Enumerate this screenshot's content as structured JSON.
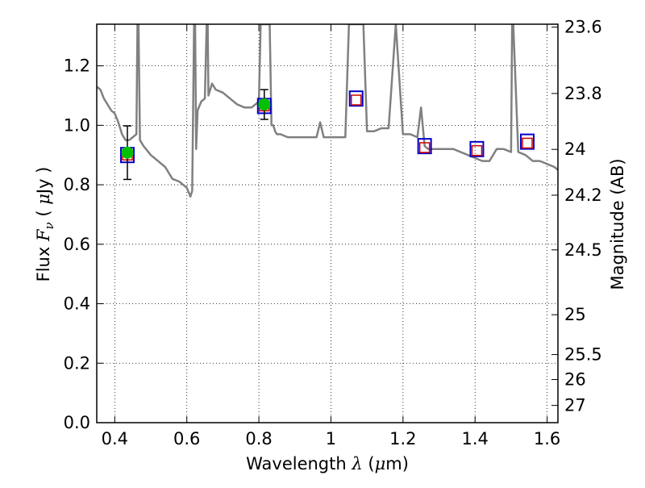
{
  "chart_data": {
    "type": "line",
    "xlabel": {
      "prefix": "Wavelength",
      "symbol": "λ",
      "unit_open": "(",
      "unit_mu": "μ",
      "unit_rest": "m)"
    },
    "ylabel": {
      "prefix": "Flux",
      "symbol": "F",
      "subscript": "ν",
      "unit_open": "(",
      "unit_mu": "μ",
      "unit_rest": "Jy",
      "unit_close": ")"
    },
    "y2label": "Magnitude (AB)",
    "xlim": [
      0.35,
      1.63
    ],
    "ylim": [
      0.0,
      1.34
    ],
    "grid": true,
    "grid_style": "dotted",
    "x_ticks": [
      0.4,
      0.6,
      0.8,
      1.0,
      1.2,
      1.4,
      1.6
    ],
    "x_tick_labels": [
      "0.4",
      "0.6",
      "0.8",
      "1",
      "1.2",
      "1.4",
      "1.6"
    ],
    "y_ticks": [
      0.0,
      0.2,
      0.4,
      0.6,
      0.8,
      1.0,
      1.2
    ],
    "y_tick_labels": [
      "0.0",
      "0.2",
      "0.4",
      "0.6",
      "0.8",
      "1.0",
      "1.2"
    ],
    "y2_ticks": [
      {
        "label": "23.6",
        "flux": 1.33
      },
      {
        "label": "23.8",
        "flux": 1.107
      },
      {
        "label": "24",
        "flux": 0.919
      },
      {
        "label": "24.2",
        "flux": 0.765
      },
      {
        "label": "24.5",
        "flux": 0.581
      },
      {
        "label": "25",
        "flux": 0.363
      },
      {
        "label": "25.5",
        "flux": 0.229
      },
      {
        "label": "26",
        "flux": 0.145
      },
      {
        "label": "27",
        "flux": 0.058
      }
    ],
    "series": [
      {
        "kind": "model_spectrum",
        "color": "#808080",
        "x": [
          0.35,
          0.36,
          0.37,
          0.38,
          0.39,
          0.4,
          0.41,
          0.42,
          0.43,
          0.44,
          0.45,
          0.46,
          0.463,
          0.466,
          0.47,
          0.48,
          0.5,
          0.52,
          0.54,
          0.56,
          0.58,
          0.6,
          0.61,
          0.615,
          0.62,
          0.623,
          0.626,
          0.63,
          0.64,
          0.65,
          0.655,
          0.658,
          0.66,
          0.67,
          0.68,
          0.7,
          0.72,
          0.74,
          0.76,
          0.78,
          0.8,
          0.805,
          0.81,
          0.815,
          0.82,
          0.825,
          0.83,
          0.835,
          0.84,
          0.845,
          0.85,
          0.86,
          0.88,
          0.9,
          0.92,
          0.94,
          0.96,
          0.97,
          0.98,
          1.0,
          1.02,
          1.04,
          1.05,
          1.06,
          1.08,
          1.09,
          1.1,
          1.12,
          1.14,
          1.16,
          1.18,
          1.2,
          1.22,
          1.24,
          1.25,
          1.26,
          1.27,
          1.28,
          1.3,
          1.32,
          1.34,
          1.36,
          1.38,
          1.4,
          1.42,
          1.44,
          1.46,
          1.48,
          1.5,
          1.503,
          1.506,
          1.52,
          1.54,
          1.56,
          1.58,
          1.6,
          1.62,
          1.63
        ],
        "y": [
          1.13,
          1.12,
          1.09,
          1.07,
          1.05,
          1.04,
          1.01,
          0.97,
          0.95,
          0.95,
          0.96,
          0.97,
          1.34,
          1.34,
          0.95,
          0.93,
          0.9,
          0.88,
          0.86,
          0.82,
          0.81,
          0.79,
          0.76,
          0.78,
          1.34,
          1.34,
          0.92,
          1.05,
          1.08,
          1.09,
          1.34,
          1.34,
          1.1,
          1.14,
          1.12,
          1.11,
          1.09,
          1.07,
          1.06,
          1.06,
          1.08,
          1.34,
          1.34,
          1.34,
          1.34,
          1.34,
          1.34,
          1.0,
          1.0,
          0.98,
          0.97,
          0.97,
          0.96,
          0.96,
          0.96,
          0.96,
          0.96,
          1.01,
          0.96,
          0.96,
          0.96,
          0.96,
          1.34,
          1.34,
          1.34,
          1.34,
          0.98,
          0.98,
          0.99,
          0.99,
          1.34,
          0.97,
          0.97,
          0.96,
          1.06,
          0.93,
          0.92,
          0.92,
          0.92,
          0.92,
          0.92,
          0.91,
          0.9,
          0.89,
          0.88,
          0.88,
          0.92,
          0.92,
          0.91,
          1.34,
          1.34,
          0.91,
          0.9,
          0.88,
          0.88,
          0.87,
          0.86,
          0.85
        ]
      },
      {
        "kind": "observed_flux",
        "color": "#00c000",
        "x": [
          0.435,
          0.815
        ],
        "y": [
          0.908,
          1.07
        ],
        "yerr": [
          0.09,
          0.05
        ]
      },
      {
        "kind": "synthetic_flux",
        "color": "#d00000",
        "x": [
          0.435,
          0.815,
          1.07,
          1.26,
          1.405,
          1.545
        ],
        "y": [
          0.9,
          1.065,
          1.085,
          0.925,
          0.915,
          0.94
        ]
      },
      {
        "kind": "filter_flux",
        "color": "#0000cc",
        "x": [
          0.435,
          0.815,
          1.07,
          1.26,
          1.405,
          1.545
        ],
        "y": [
          0.9,
          1.065,
          1.09,
          0.93,
          0.92,
          0.945
        ]
      }
    ]
  }
}
